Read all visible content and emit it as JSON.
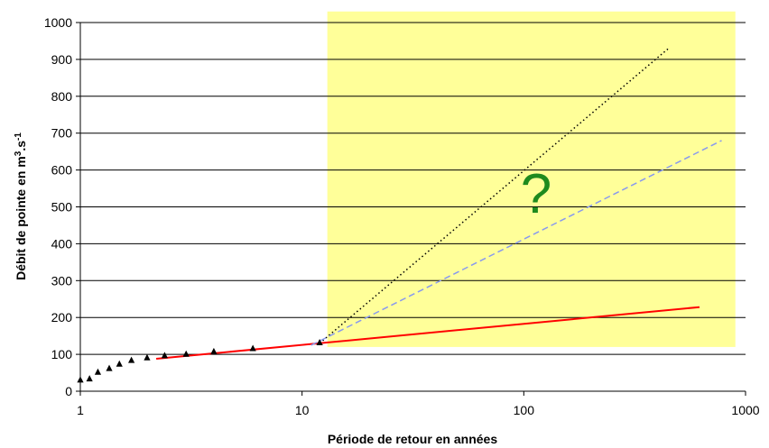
{
  "chart_data": {
    "type": "scatter",
    "xlabel": "Période de retour en années",
    "ylabel": {
      "main": "Débit de pointe en m",
      "sup1": "3",
      "mid": ".s",
      "sup2": "-1"
    },
    "x_scale": "log",
    "xlim": [
      1,
      1000
    ],
    "ylim": [
      0,
      1000
    ],
    "x_ticks": [
      1,
      10,
      100,
      1000
    ],
    "y_ticks": [
      0,
      100,
      200,
      300,
      400,
      500,
      600,
      700,
      800,
      900,
      1000
    ],
    "grid": "horizontal",
    "annotation": "?",
    "uncertainty_zone": {
      "x": [
        13,
        900
      ],
      "y": [
        120,
        1030
      ],
      "color": "#ffff99"
    },
    "observed_points": {
      "marker": "triangle",
      "color": "#000000",
      "x": [
        1.0,
        1.1,
        1.2,
        1.35,
        1.5,
        1.7,
        2.0,
        2.4,
        3.0,
        4.0,
        6.0,
        12.0
      ],
      "y": [
        31,
        34,
        52,
        62,
        74,
        84,
        91,
        97,
        101,
        108,
        116,
        132
      ]
    },
    "series": [
      {
        "style": "solid",
        "color": "#ff0000",
        "x": [
          2.2,
          12,
          620
        ],
        "y": [
          88,
          130,
          228
        ]
      },
      {
        "style": "dotted",
        "color": "#000000",
        "x": [
          12,
          450
        ],
        "y": [
          130,
          930
        ]
      },
      {
        "style": "dashed",
        "color": "#8899ee",
        "x": [
          11,
          780
        ],
        "y": [
          125,
          680
        ]
      }
    ]
  }
}
